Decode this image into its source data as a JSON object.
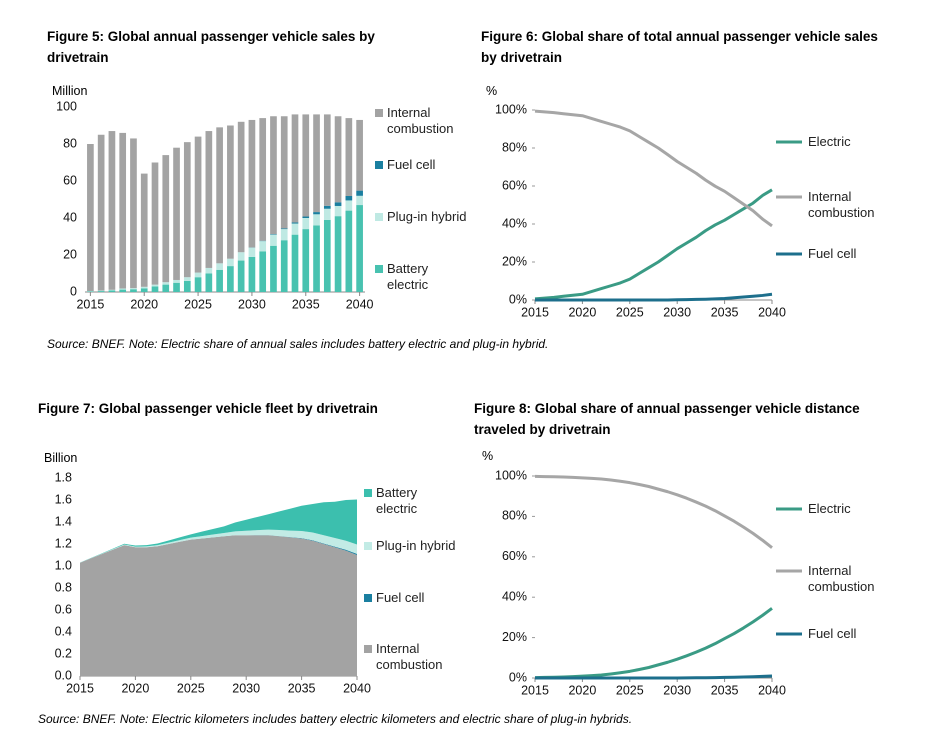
{
  "chart_data": [
    {
      "type": "bar",
      "stacked": true,
      "title": "Figure 5: Global annual passenger vehicle sales by drivetrain",
      "y_label": "Million",
      "x": [
        2015,
        2016,
        2017,
        2018,
        2019,
        2020,
        2021,
        2022,
        2023,
        2024,
        2025,
        2026,
        2027,
        2028,
        2029,
        2030,
        2031,
        2032,
        2033,
        2034,
        2035,
        2036,
        2037,
        2038,
        2039,
        2040
      ],
      "xlim": [
        2014.5,
        2040.5
      ],
      "xticks": [
        2015,
        2020,
        2025,
        2030,
        2035,
        2040
      ],
      "ylim": [
        0,
        100
      ],
      "yticks": [
        0,
        20,
        40,
        60,
        80,
        100
      ],
      "grid": false,
      "series": [
        {
          "name": "Battery electric",
          "color": "#48c2b0",
          "values": [
            0.3,
            0.5,
            0.8,
            1.3,
            1.5,
            2,
            3,
            4,
            5,
            6,
            8,
            10,
            12,
            14,
            17,
            19,
            22,
            25,
            28,
            31,
            34,
            36,
            39,
            41,
            44,
            47
          ]
        },
        {
          "name": "Plug-in hybrid",
          "color": "#bfe9e3",
          "values": [
            0.2,
            0.3,
            0.4,
            0.6,
            0.6,
            0.8,
            1,
            1.3,
            1.5,
            2,
            2.5,
            3,
            3.5,
            4,
            4.5,
            5,
            5.5,
            6,
            6,
            6,
            6,
            6,
            6,
            5.5,
            5.5,
            5
          ]
        },
        {
          "name": "Fuel cell",
          "color": "#1a7fa0",
          "values": [
            0,
            0,
            0,
            0,
            0,
            0,
            0,
            0,
            0,
            0,
            0,
            0,
            0,
            0,
            0,
            0.1,
            0.2,
            0.3,
            0.4,
            0.6,
            0.8,
            1.2,
            1.6,
            2,
            2.4,
            2.8
          ]
        },
        {
          "name": "Internal combustion",
          "color": "#a3a3a3",
          "values": [
            79.5,
            84.2,
            85.8,
            84.1,
            80.9,
            61.2,
            66,
            68.7,
            71.5,
            73,
            73.5,
            74,
            73.5,
            72,
            70.5,
            68.9,
            66.3,
            63.7,
            60.6,
            58.4,
            55.2,
            52.8,
            49.4,
            46.5,
            42.1,
            38.2
          ]
        }
      ]
    },
    {
      "type": "line",
      "title": "Figure 6: Global share of total annual passenger vehicle sales by drivetrain",
      "y_label": "%",
      "x": [
        2015,
        2016,
        2017,
        2018,
        2019,
        2020,
        2021,
        2022,
        2023,
        2024,
        2025,
        2026,
        2027,
        2028,
        2029,
        2030,
        2031,
        2032,
        2033,
        2034,
        2035,
        2036,
        2037,
        2038,
        2039,
        2040
      ],
      "xlim": [
        2015,
        2040
      ],
      "xticks": [
        2015,
        2020,
        2025,
        2030,
        2035,
        2040
      ],
      "ylim": [
        0,
        100
      ],
      "yticks": [
        {
          "value": 0,
          "label": "0%"
        },
        {
          "value": 20,
          "label": "20%"
        },
        {
          "value": 40,
          "label": "40%"
        },
        {
          "value": 60,
          "label": "60%"
        },
        {
          "value": 80,
          "label": "80%"
        },
        {
          "value": 100,
          "label": "100%"
        }
      ],
      "grid": false,
      "series": [
        {
          "name": "Electric",
          "color": "#3a9b85",
          "values": [
            0.6,
            1,
            1.4,
            2,
            2.5,
            3,
            4.5,
            6,
            7.5,
            9,
            11,
            14,
            17,
            20,
            23.5,
            27,
            30,
            33,
            36.5,
            39.5,
            42,
            45,
            48,
            51,
            55,
            58
          ]
        },
        {
          "name": "Internal combustion",
          "color": "#a6a6a6",
          "values": [
            99.4,
            99,
            98.6,
            98,
            97.5,
            97,
            95.5,
            94,
            92.5,
            91,
            89,
            86,
            83,
            80,
            76.5,
            72.9,
            69.8,
            66.7,
            63.1,
            59.9,
            57.2,
            53.8,
            50.4,
            47,
            42.6,
            39
          ]
        },
        {
          "name": "Fuel cell",
          "color": "#1d6f8c",
          "values": [
            0,
            0,
            0,
            0,
            0,
            0,
            0,
            0,
            0,
            0,
            0,
            0,
            0,
            0,
            0,
            0.1,
            0.2,
            0.3,
            0.4,
            0.6,
            0.8,
            1.2,
            1.6,
            2,
            2.4,
            3
          ]
        }
      ]
    },
    {
      "type": "area",
      "stacked": true,
      "title": "Figure 7: Global passenger vehicle fleet by drivetrain",
      "y_label": "Billion",
      "x": [
        2015,
        2016,
        2017,
        2018,
        2019,
        2020,
        2021,
        2022,
        2023,
        2024,
        2025,
        2026,
        2027,
        2028,
        2029,
        2030,
        2031,
        2032,
        2033,
        2034,
        2035,
        2036,
        2037,
        2038,
        2039,
        2040
      ],
      "xlim": [
        2015,
        2040
      ],
      "xticks": [
        2015,
        2020,
        2025,
        2030,
        2035,
        2040
      ],
      "ylim": [
        0,
        1.8
      ],
      "yticks": [
        {
          "value": 0,
          "label": "0.0"
        },
        0.2,
        0.4,
        0.6,
        0.8,
        {
          "value": 1,
          "label": "1.0"
        },
        1.2,
        1.4,
        1.6,
        1.8
      ],
      "grid": false,
      "series": [
        {
          "name": "Internal combustion",
          "color": "#a3a3a3",
          "values": [
            1.03,
            1.07,
            1.11,
            1.15,
            1.19,
            1.17,
            1.17,
            1.18,
            1.2,
            1.22,
            1.24,
            1.25,
            1.26,
            1.27,
            1.28,
            1.28,
            1.28,
            1.28,
            1.27,
            1.26,
            1.25,
            1.23,
            1.2,
            1.17,
            1.14,
            1.1
          ]
        },
        {
          "name": "Fuel cell",
          "color": "#1a7fa0",
          "values": [
            0,
            0,
            0,
            0,
            0,
            0,
            0,
            0,
            0,
            0,
            0,
            0,
            0,
            0,
            0,
            0,
            0.001,
            0.001,
            0.002,
            0.002,
            0.003,
            0.004,
            0.005,
            0.006,
            0.008,
            0.01
          ]
        },
        {
          "name": "Plug-in hybrid",
          "color": "#c2ebe5",
          "values": [
            0.001,
            0.002,
            0.003,
            0.004,
            0.005,
            0.006,
            0.008,
            0.01,
            0.012,
            0.015,
            0.018,
            0.022,
            0.026,
            0.03,
            0.035,
            0.04,
            0.045,
            0.05,
            0.055,
            0.06,
            0.065,
            0.07,
            0.074,
            0.078,
            0.082,
            0.085
          ]
        },
        {
          "name": "Battery electric",
          "color": "#3cbfae",
          "values": [
            0.001,
            0.002,
            0.003,
            0.005,
            0.007,
            0.01,
            0.012,
            0.015,
            0.02,
            0.025,
            0.03,
            0.04,
            0.05,
            0.06,
            0.08,
            0.1,
            0.12,
            0.14,
            0.17,
            0.2,
            0.23,
            0.26,
            0.3,
            0.33,
            0.37,
            0.41
          ]
        }
      ]
    },
    {
      "type": "line",
      "title": "Figure 8: Global share of annual passenger vehicle distance traveled by drivetrain",
      "y_label": "%",
      "x": [
        2015,
        2016,
        2017,
        2018,
        2019,
        2020,
        2021,
        2022,
        2023,
        2024,
        2025,
        2026,
        2027,
        2028,
        2029,
        2030,
        2031,
        2032,
        2033,
        2034,
        2035,
        2036,
        2037,
        2038,
        2039,
        2040
      ],
      "xlim": [
        2015,
        2040
      ],
      "xticks": [
        2015,
        2020,
        2025,
        2030,
        2035,
        2040
      ],
      "ylim": [
        0,
        100
      ],
      "yticks": [
        {
          "value": 0,
          "label": "0%"
        },
        {
          "value": 20,
          "label": "20%"
        },
        {
          "value": 40,
          "label": "40%"
        },
        {
          "value": 60,
          "label": "60%"
        },
        {
          "value": 80,
          "label": "80%"
        },
        {
          "value": 100,
          "label": "100%"
        }
      ],
      "grid": false,
      "series": [
        {
          "name": "Electric",
          "color": "#3a9b85",
          "values": [
            0.2,
            0.3,
            0.4,
            0.5,
            0.7,
            0.9,
            1.2,
            1.5,
            2,
            2.6,
            3.3,
            4.2,
            5.2,
            6.5,
            7.8,
            9.3,
            11,
            12.8,
            14.8,
            17,
            19.5,
            22,
            24.8,
            27.8,
            31,
            34.5
          ]
        },
        {
          "name": "Internal combustion",
          "color": "#a6a6a6",
          "values": [
            99.8,
            99.7,
            99.6,
            99.5,
            99.3,
            99.1,
            98.8,
            98.5,
            98,
            97.4,
            96.7,
            95.8,
            94.8,
            93.5,
            92.2,
            90.7,
            89,
            87.1,
            85.1,
            82.8,
            80.2,
            77.6,
            74.7,
            71.6,
            68.2,
            64.5
          ]
        },
        {
          "name": "Fuel cell",
          "color": "#1d6f8c",
          "values": [
            0,
            0,
            0,
            0,
            0,
            0,
            0,
            0,
            0,
            0,
            0,
            0,
            0,
            0,
            0,
            0,
            0.05,
            0.1,
            0.15,
            0.2,
            0.3,
            0.4,
            0.5,
            0.6,
            0.8,
            1
          ]
        }
      ]
    }
  ],
  "sources": [
    "Source: BNEF. Note: Electric share of annual sales includes battery electric and plug-in hybrid.",
    "Source: BNEF. Note: Electric kilometers includes battery electric kilometers and electric share of plug-in hybrids."
  ]
}
